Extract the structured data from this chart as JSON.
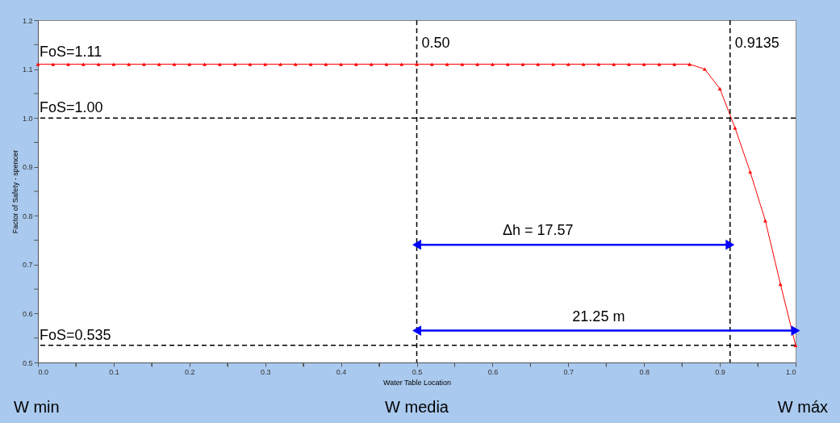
{
  "chart_data": {
    "type": "line",
    "xlabel": "Water Table Location",
    "ylabel": "Factor of Safety - spencer",
    "x": [
      0,
      0.02,
      0.04,
      0.06,
      0.08,
      0.1,
      0.12,
      0.14,
      0.16,
      0.18,
      0.2,
      0.22,
      0.24,
      0.26,
      0.28,
      0.3,
      0.32,
      0.34,
      0.36,
      0.38,
      0.4,
      0.42,
      0.44,
      0.46,
      0.48,
      0.5,
      0.52,
      0.54,
      0.56,
      0.58,
      0.6,
      0.62,
      0.64,
      0.66,
      0.68,
      0.7,
      0.72,
      0.74,
      0.76,
      0.78,
      0.8,
      0.82,
      0.84,
      0.86,
      0.88,
      0.9,
      0.92,
      0.94,
      0.96,
      0.98,
      1.0
    ],
    "series": [
      {
        "color": "#ff0000",
        "values": [
          1.11,
          1.11,
          1.11,
          1.11,
          1.11,
          1.11,
          1.11,
          1.11,
          1.11,
          1.11,
          1.11,
          1.11,
          1.11,
          1.11,
          1.11,
          1.11,
          1.11,
          1.11,
          1.11,
          1.11,
          1.11,
          1.11,
          1.11,
          1.11,
          1.11,
          1.11,
          1.11,
          1.11,
          1.11,
          1.11,
          1.11,
          1.11,
          1.11,
          1.11,
          1.11,
          1.11,
          1.11,
          1.11,
          1.11,
          1.11,
          1.11,
          1.11,
          1.11,
          1.11,
          1.1,
          1.06,
          0.98,
          0.89,
          0.79,
          0.66,
          0.535
        ]
      }
    ],
    "marker": "triangle",
    "line_style": "solid",
    "xlim": [
      0,
      1.0
    ],
    "ylim": [
      0.5,
      1.2
    ],
    "xticks": [
      {
        "value": 0,
        "label": "0.0"
      },
      {
        "value": 0.05,
        "label": null
      },
      0.1,
      {
        "value": 0.15,
        "label": null
      },
      0.2,
      {
        "value": 0.25,
        "label": null
      },
      0.3,
      {
        "value": 0.35,
        "label": null
      },
      0.4,
      {
        "value": 0.45,
        "label": null
      },
      0.5,
      {
        "value": 0.55,
        "label": null
      },
      0.6,
      {
        "value": 0.65,
        "label": null
      },
      0.7,
      {
        "value": 0.75,
        "label": null
      },
      0.8,
      {
        "value": 0.85,
        "label": null
      },
      0.9,
      {
        "value": 0.95,
        "label": null
      },
      {
        "value": 1.0,
        "label": "1.0"
      }
    ],
    "yticks": [
      0.5,
      {
        "value": 0.55,
        "label": null
      },
      0.6,
      {
        "value": 0.65,
        "label": null
      },
      0.7,
      {
        "value": 0.75,
        "label": null
      },
      0.8,
      {
        "value": 0.85,
        "label": null
      },
      0.9,
      {
        "value": 0.95,
        "label": null
      },
      {
        "value": 1.0,
        "label": "1.0"
      },
      {
        "value": 1.05,
        "label": null
      },
      1.1,
      {
        "value": 1.15,
        "label": null
      },
      1.2
    ],
    "grid": false,
    "ref_lines": [
      {
        "axis": "x",
        "value": 0.5,
        "label": "0.50",
        "color": "#000000",
        "line_style": "dashed"
      },
      {
        "axis": "x",
        "value": 0.9135,
        "label": "0.9135",
        "color": "#000000",
        "line_style": "dashed"
      },
      {
        "axis": "y",
        "value": 1.0,
        "label": "FoS=1.00",
        "color": "#000000",
        "line_style": "dashed"
      },
      {
        "axis": "y",
        "value": 0.535,
        "label": "FoS=0.535",
        "color": "#000000",
        "line_style": "dashed"
      }
    ],
    "annotations": [
      {
        "text": "FoS=1.11",
        "x": 0,
        "y": 1.11
      },
      "Δh = 17.57",
      "21.25 m",
      "W min",
      {
        "text": "W media",
        "x": 0.5,
        "y": 0.5
      },
      "W máx"
    ]
  }
}
